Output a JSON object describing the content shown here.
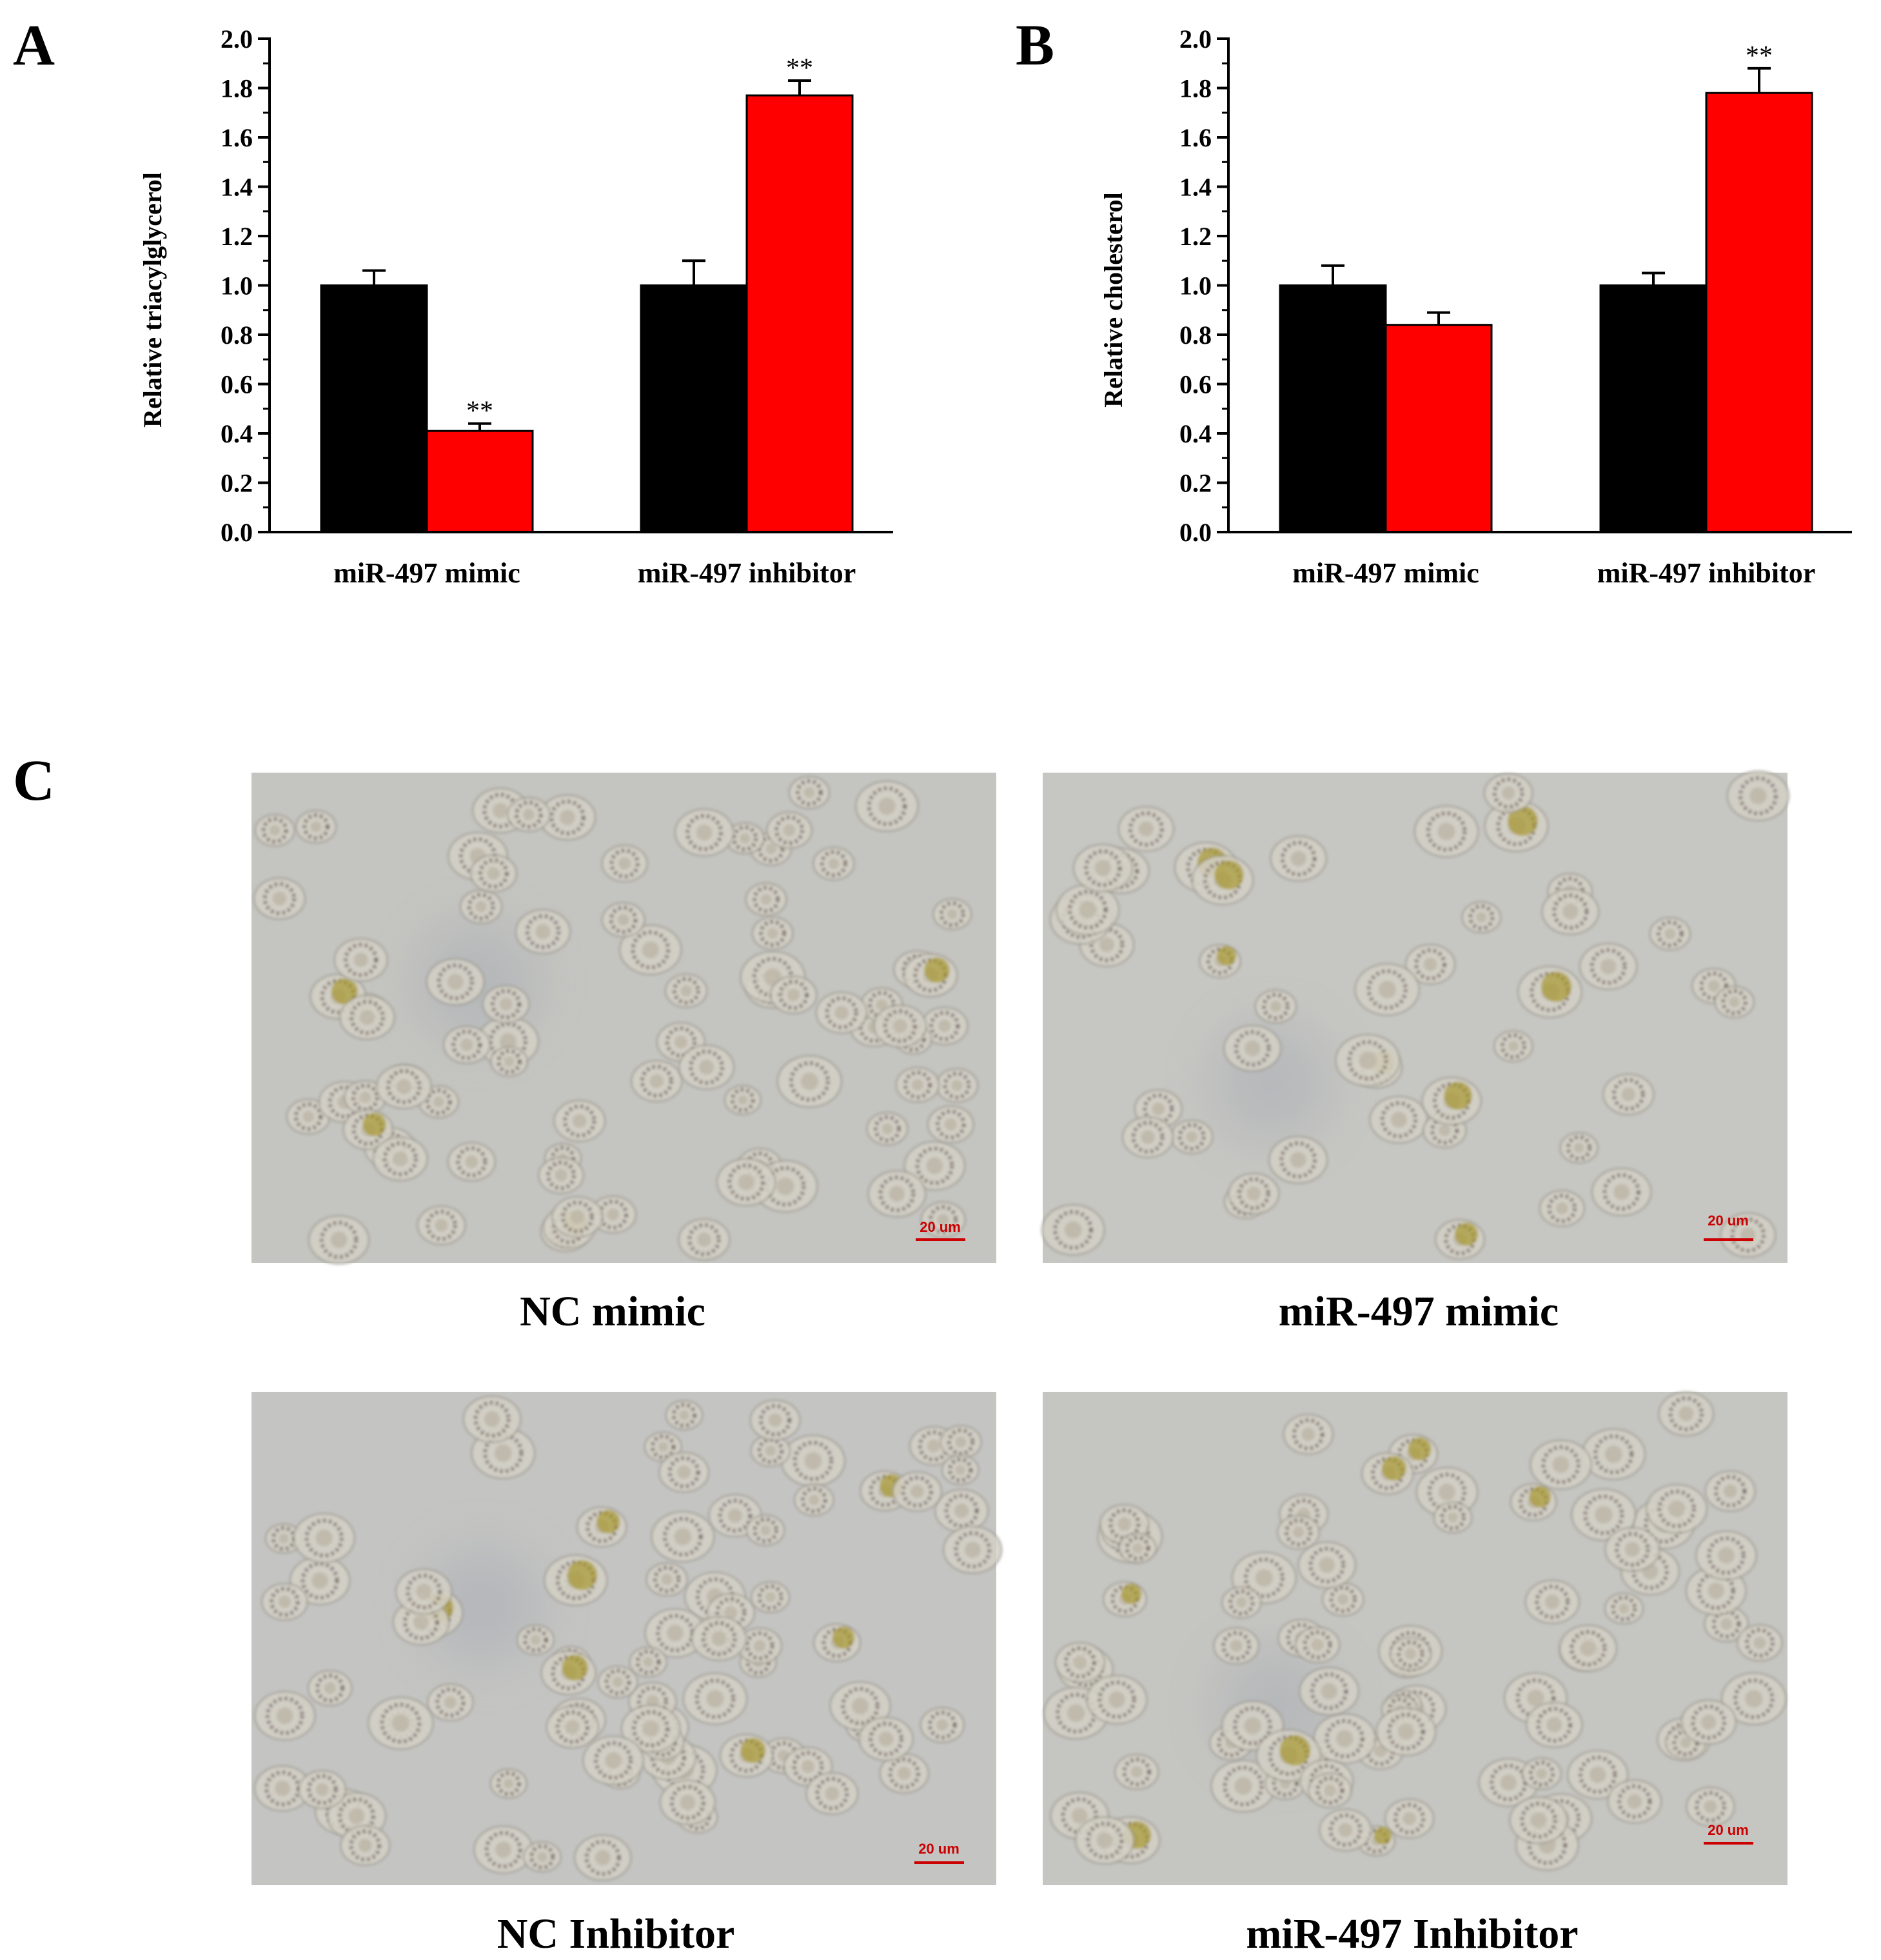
{
  "chart_data": [
    {
      "panel": "A",
      "type": "bar",
      "ylabel": "Relative triacylglycerol",
      "xlabel": "",
      "ylim": [
        0,
        2.0
      ],
      "yticks": [
        "0.0",
        "0.2",
        "0.4",
        "0.6",
        "0.8",
        "1.0",
        "1.2",
        "1.4",
        "1.6",
        "1.8",
        "2.0"
      ],
      "categories": [
        "miR-497 mimic",
        "miR-497 inhibitor"
      ],
      "series": [
        {
          "color": "#000000",
          "values": [
            1.0,
            1.0
          ],
          "errors": [
            0.06,
            0.1
          ],
          "sig": [
            "",
            ""
          ]
        },
        {
          "color": "#ff0000",
          "values": [
            0.41,
            1.77
          ],
          "errors": [
            0.03,
            0.06
          ],
          "sig": [
            "**",
            "**"
          ]
        }
      ]
    },
    {
      "panel": "B",
      "type": "bar",
      "ylabel": "Relative cholesterol",
      "xlabel": "",
      "ylim": [
        0,
        2.0
      ],
      "yticks": [
        "0.0",
        "0.2",
        "0.4",
        "0.6",
        "0.8",
        "1.0",
        "1.2",
        "1.4",
        "1.6",
        "1.8",
        "2.0"
      ],
      "categories": [
        "miR-497 mimic",
        "miR-497 inhibitor"
      ],
      "series": [
        {
          "color": "#000000",
          "values": [
            1.0,
            1.0
          ],
          "errors": [
            0.08,
            0.05
          ],
          "sig": [
            "",
            ""
          ]
        },
        {
          "color": "#ff0000",
          "values": [
            0.84,
            1.78
          ],
          "errors": [
            0.05,
            0.1
          ],
          "sig": [
            "",
            "**"
          ]
        }
      ]
    }
  ],
  "panel_c": {
    "letter": "C",
    "images": [
      {
        "caption": "NC mimic",
        "scale": "20 um"
      },
      {
        "caption": "miR-497 mimic",
        "scale": "20 um"
      },
      {
        "caption": "NC Inhibitor",
        "scale": "20 um"
      },
      {
        "caption": "miR-497 Inhibitor",
        "scale": "20 um"
      }
    ]
  }
}
